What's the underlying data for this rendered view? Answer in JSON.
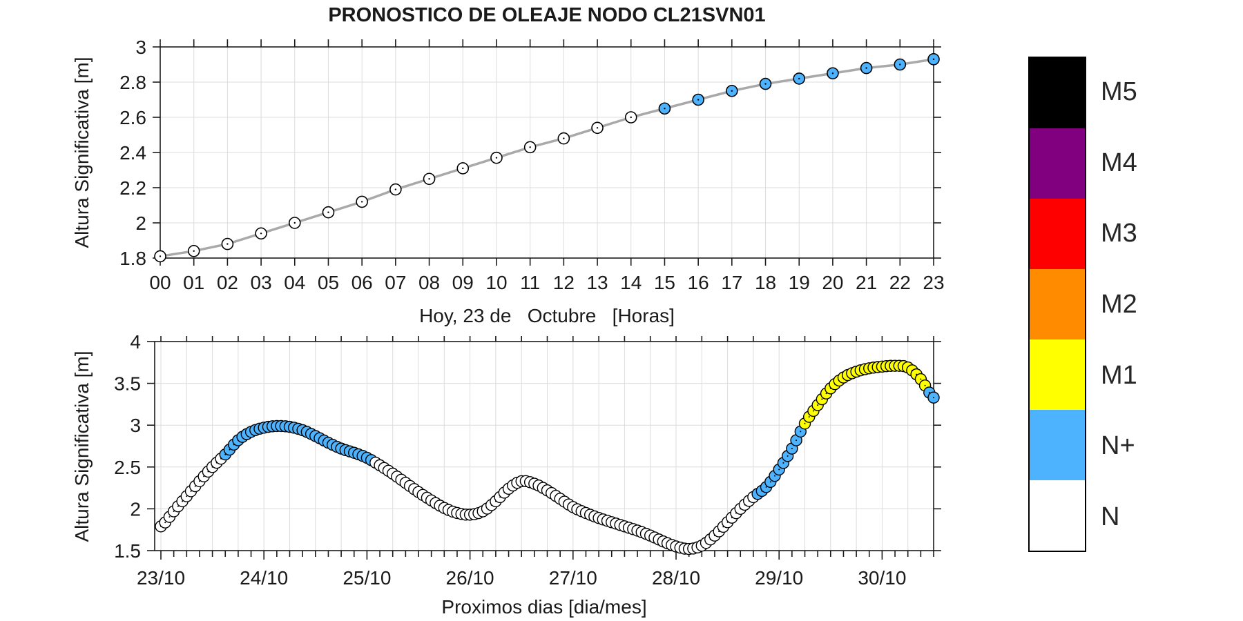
{
  "title": "PRONOSTICO DE OLEAJE NODO CL21SVN01",
  "level_colors": {
    "N": "#FFFFFF",
    "N+": "#4DB3FF",
    "M1": "#FFFF00",
    "M2": "#FF8C00",
    "M3": "#FF0000",
    "M4": "#800080",
    "M5": "#000000"
  },
  "legend": {
    "entries": [
      {
        "label": "M5",
        "color": "#000000"
      },
      {
        "label": "M4",
        "color": "#800080"
      },
      {
        "label": "M3",
        "color": "#FF0000"
      },
      {
        "label": "M2",
        "color": "#FF8C00"
      },
      {
        "label": "M1",
        "color": "#FFFF00"
      },
      {
        "label": "N+",
        "color": "#4DB3FF"
      },
      {
        "label": "N",
        "color": "#FFFFFF"
      }
    ]
  },
  "chart_data": [
    {
      "type": "line",
      "name": "pronostico-hoy",
      "title": "PRONOSTICO DE OLEAJE NODO CL21SVN01",
      "xlabel": "Hoy, 23 de   Octubre   [Horas]",
      "ylabel": "Altura Significativa [m]",
      "x_ticklabels": [
        "00",
        "01",
        "02",
        "03",
        "04",
        "05",
        "06",
        "07",
        "08",
        "09",
        "10",
        "11",
        "12",
        "13",
        "14",
        "15",
        "16",
        "17",
        "18",
        "19",
        "20",
        "21",
        "22",
        "23"
      ],
      "x_hours": [
        0,
        1,
        2,
        3,
        4,
        5,
        6,
        7,
        8,
        9,
        10,
        11,
        12,
        13,
        14,
        15,
        16,
        17,
        18,
        19,
        20,
        21,
        22,
        23
      ],
      "values": [
        1.81,
        1.84,
        1.88,
        1.94,
        2.0,
        2.06,
        2.12,
        2.19,
        2.25,
        2.31,
        2.37,
        2.43,
        2.48,
        2.54,
        2.6,
        2.65,
        2.7,
        2.75,
        2.79,
        2.82,
        2.85,
        2.88,
        2.9,
        2.93
      ],
      "level_segments": [
        {
          "from": 0,
          "to": 14,
          "level": "N"
        },
        {
          "from": 15,
          "to": 23,
          "level": "N+"
        }
      ],
      "ylim": [
        1.8,
        3.0
      ],
      "yticks": [
        1.8,
        2.0,
        2.2,
        2.4,
        2.6,
        2.8,
        3.0
      ],
      "ytick_labels": [
        "1.8",
        "2",
        "2.2",
        "2.4",
        "2.6",
        "2.8",
        "3"
      ],
      "grid": true,
      "line_color": "#A9A9A9"
    },
    {
      "type": "line",
      "name": "pronostico-proximos-dias",
      "xlabel": "Proximos dias [dia/mes]",
      "ylabel": "Altura Significativa [m]",
      "x_ticklabels": [
        "23/10",
        "24/10",
        "25/10",
        "26/10",
        "27/10",
        "28/10",
        "29/10",
        "30/10"
      ],
      "anchor_hours": [
        0,
        3,
        6,
        9,
        12,
        15,
        18,
        21,
        24,
        27,
        30,
        33,
        36,
        39,
        42,
        45,
        48,
        51,
        54,
        57,
        60,
        63,
        66,
        69,
        72,
        75,
        78,
        81,
        84,
        87,
        90,
        93,
        96,
        99,
        102,
        105,
        108,
        111,
        114,
        117,
        120,
        123,
        126,
        129,
        132,
        135,
        138,
        141,
        144,
        147,
        150,
        153,
        156,
        159,
        162,
        165,
        168,
        171,
        174,
        177,
        180
      ],
      "anchor_values": [
        1.79,
        1.97,
        2.15,
        2.33,
        2.5,
        2.65,
        2.82,
        2.92,
        2.97,
        2.99,
        2.98,
        2.94,
        2.87,
        2.79,
        2.72,
        2.67,
        2.61,
        2.52,
        2.42,
        2.31,
        2.2,
        2.1,
        2.01,
        1.95,
        1.93,
        1.97,
        2.09,
        2.24,
        2.33,
        2.3,
        2.22,
        2.12,
        2.02,
        1.95,
        1.89,
        1.84,
        1.79,
        1.74,
        1.68,
        1.61,
        1.55,
        1.52,
        1.56,
        1.68,
        1.84,
        2.0,
        2.14,
        2.26,
        2.47,
        2.72,
        3.02,
        3.24,
        3.44,
        3.57,
        3.64,
        3.68,
        3.7,
        3.71,
        3.69,
        3.55,
        3.33
      ],
      "level_segments": [
        {
          "from": 0,
          "to": 14,
          "level": "N"
        },
        {
          "from": 15,
          "to": 49,
          "level": "N+"
        },
        {
          "from": 50,
          "to": 138,
          "level": "N"
        },
        {
          "from": 139,
          "to": 149,
          "level": "N+"
        },
        {
          "from": 150,
          "to": 178,
          "level": "M1"
        },
        {
          "from": 179,
          "to": 180,
          "level": "N+"
        }
      ],
      "marker_interval_hours": 1,
      "ylim": [
        1.5,
        4.0
      ],
      "yticks": [
        1.5,
        2.0,
        2.5,
        3.0,
        3.5,
        4.0
      ],
      "ytick_labels": [
        "1.5",
        "2",
        "2.5",
        "3",
        "3.5",
        "4"
      ],
      "grid": true,
      "line_color": "#000000"
    }
  ]
}
